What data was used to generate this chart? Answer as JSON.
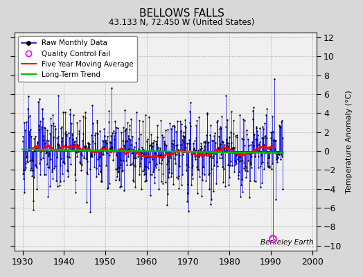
{
  "title": "BELLOWS FALLS",
  "subtitle": "43.133 N, 72.450 W (United States)",
  "ylabel": "Temperature Anomaly (°C)",
  "xlim": [
    1928,
    2001
  ],
  "ylim": [
    -10.5,
    12.5
  ],
  "yticks": [
    -10,
    -8,
    -6,
    -4,
    -2,
    0,
    2,
    4,
    6,
    8,
    10,
    12
  ],
  "xticks": [
    1930,
    1940,
    1950,
    1960,
    1970,
    1980,
    1990,
    2000
  ],
  "background_color": "#d8d8d8",
  "plot_bg_color": "#f0f0f0",
  "grid_color": "#aaaaaa",
  "raw_line_color": "#0000ee",
  "raw_dot_color": "#000000",
  "ma_color": "#ff0000",
  "trend_color": "#00bb00",
  "qc_fail_color": "#ff00ff",
  "watermark": "Berkeley Earth",
  "seed": 123,
  "n_months": 756,
  "start_year": 1930,
  "qc_fail_year": 1990.5,
  "qc_fail_value": -9.3
}
